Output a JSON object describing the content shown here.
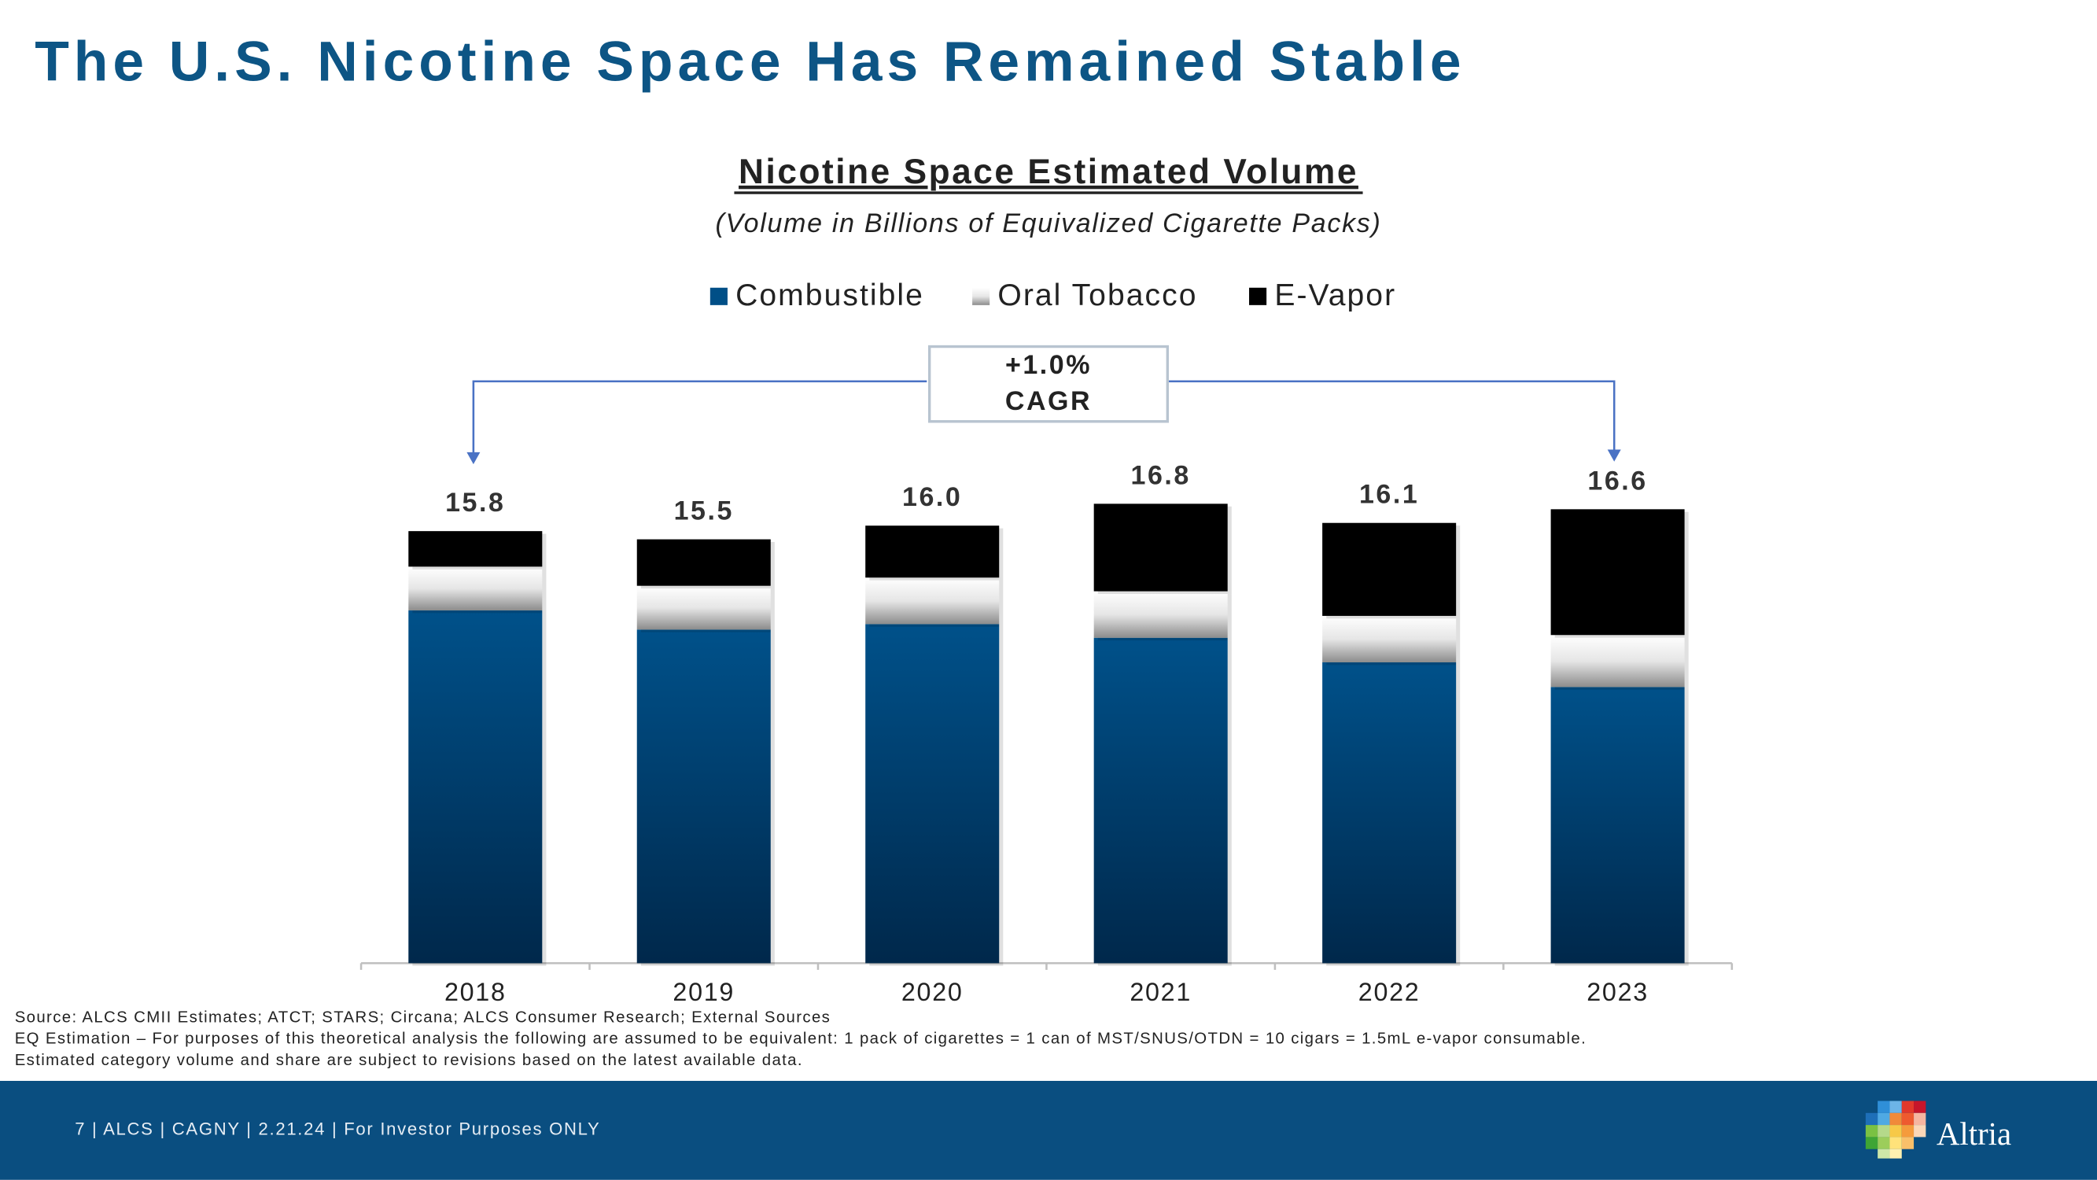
{
  "chart_data": {
    "type": "stacked_bar",
    "title": "The U.S. Nicotine Space Has Remained Stable",
    "chart_title": "Nicotine Space Estimated Volume",
    "subtitle": "(Volume in Billions of Equivalized Cigarette Packs)",
    "categories": [
      "2018",
      "2019",
      "2020",
      "2021",
      "2022",
      "2023"
    ],
    "series": [
      {
        "name": "Combustible",
        "color": "#004f87",
        "values": [
          12.9,
          12.2,
          12.4,
          11.9,
          11.0,
          10.1
        ]
      },
      {
        "name": "Oral Tobacco",
        "color": "#d9d9d9",
        "values": [
          1.6,
          1.6,
          1.7,
          1.7,
          1.7,
          1.9
        ]
      },
      {
        "name": "E-Vapor",
        "color": "#000000",
        "values": [
          1.3,
          1.7,
          1.9,
          3.2,
          3.4,
          4.6
        ]
      }
    ],
    "total_labels": [
      "15.8",
      "15.5",
      "16.0",
      "16.8",
      "16.1",
      "16.6"
    ],
    "ylim": [
      0,
      18
    ],
    "annotation": [
      "+1.0%",
      "CAGR"
    ],
    "sources": [
      "Source: ALCS CMII Estimates; ATCT; STARS; Circana; ALCS Consumer Research; External Sources",
      "EQ Estimation – For purposes of this theoretical analysis the following are assumed to be equivalent: 1 pack of cigarettes = 1 can of MST/SNUS/OTDN = 10 cigars = 1.5mL e-vapor consumable.",
      "Estimated category volume and share are subject to revisions based on the latest available data."
    ],
    "footer": "7 | ALCS | CAGNY | 2.21.24 | For Investor Purposes ONLY",
    "logo": "Altria"
  }
}
